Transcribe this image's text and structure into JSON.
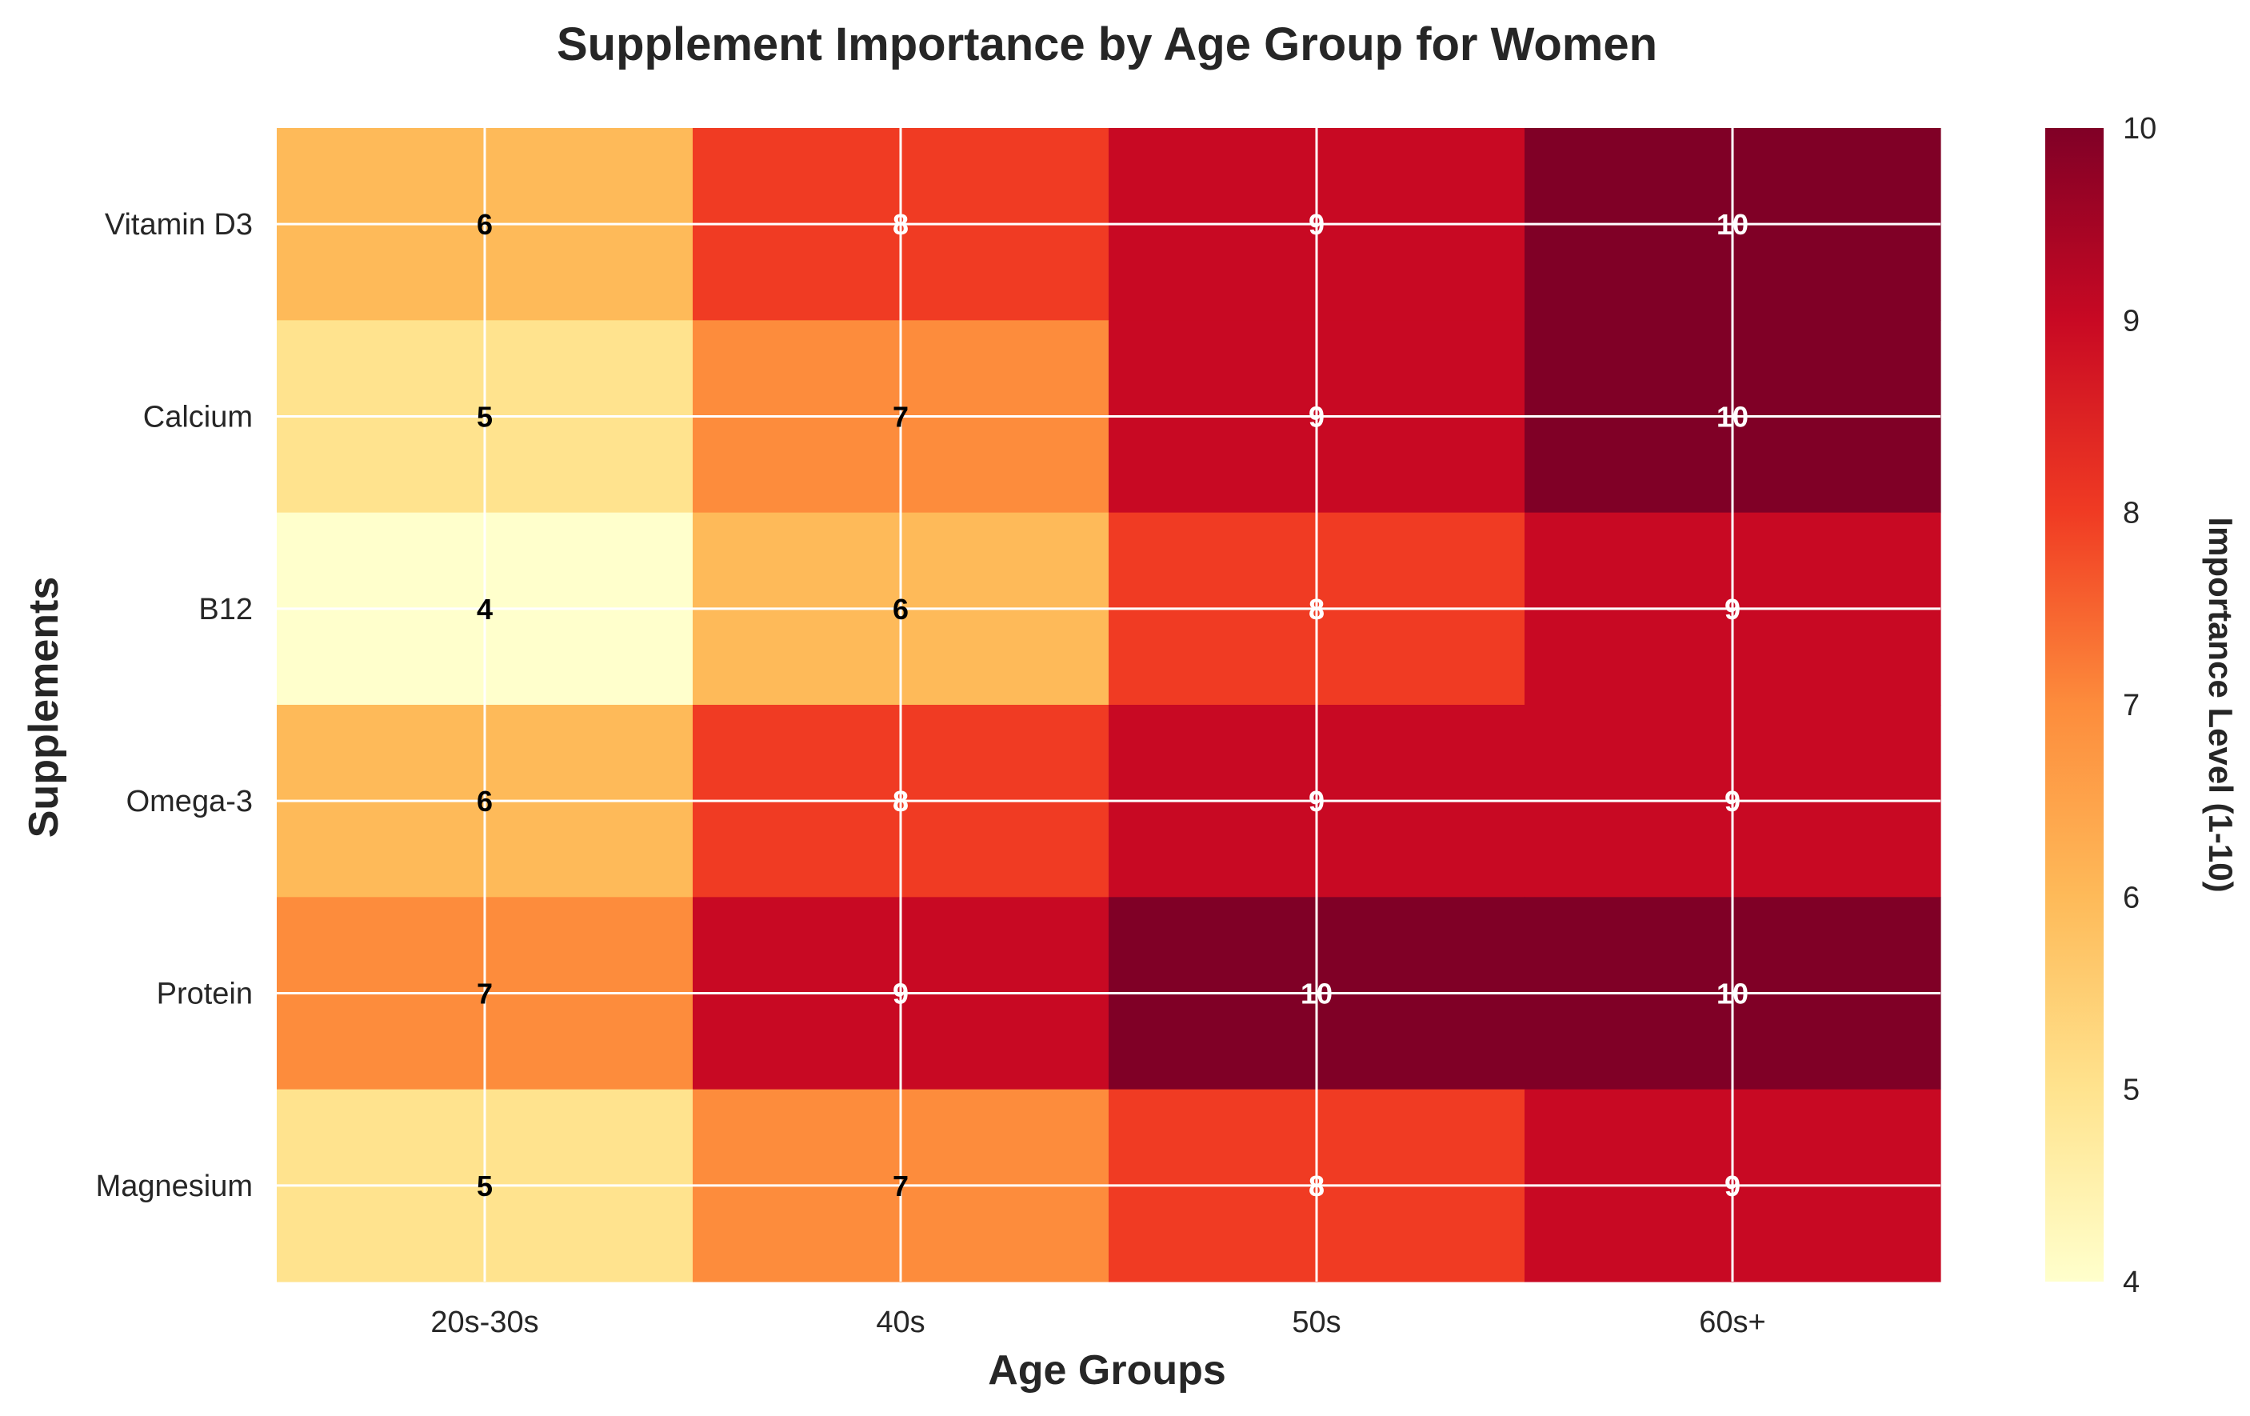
{
  "chart_data": {
    "type": "heatmap",
    "title": "Supplement Importance by Age Group for Women",
    "xlabel": "Age Groups",
    "ylabel": "Supplements",
    "x_categories": [
      "20s-30s",
      "40s",
      "50s",
      "60s+"
    ],
    "y_categories": [
      "Vitamin D3",
      "Calcium",
      "B12",
      "Omega-3",
      "Protein",
      "Magnesium"
    ],
    "values": [
      [
        6,
        8,
        9,
        10
      ],
      [
        5,
        7,
        9,
        10
      ],
      [
        4,
        6,
        8,
        9
      ],
      [
        6,
        8,
        9,
        9
      ],
      [
        7,
        9,
        10,
        10
      ],
      [
        5,
        7,
        8,
        9
      ]
    ],
    "colorbar": {
      "label": "Importance Level (1-10)",
      "range": [
        4,
        10
      ],
      "ticks": [
        4,
        5,
        6,
        7,
        8,
        9,
        10
      ],
      "colormap": "YlOrRd"
    },
    "colors": {
      "4": "#ffffcc",
      "5": "#ffe38e",
      "6": "#feba59",
      "7": "#fd8c3c",
      "8": "#f03b23",
      "9": "#c80923",
      "10": "#800026"
    }
  }
}
